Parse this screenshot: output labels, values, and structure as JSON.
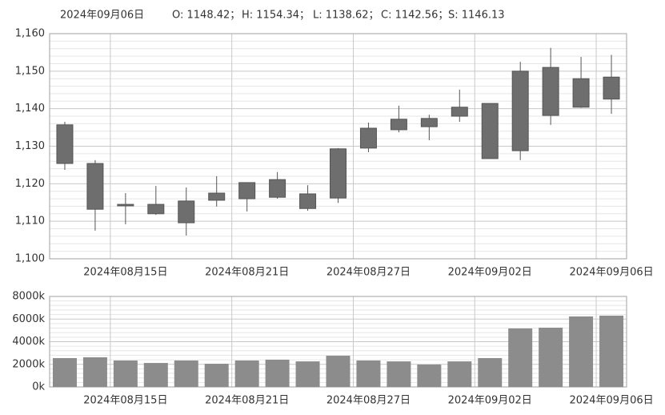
{
  "header": {
    "date": "2024年09月06日",
    "items": [
      "O: 1148.42；",
      "H: 1154.34；",
      "L: 1138.62；",
      "C: 1142.56；",
      "S: 1146.13"
    ]
  },
  "chart_data": [
    {
      "type": "candlestick",
      "categories": [
        null,
        null,
        "2024年08月15日",
        null,
        null,
        null,
        "2024年08月21日",
        null,
        null,
        null,
        "2024年08月27日",
        null,
        null,
        null,
        "2024年09月02日",
        null,
        null,
        null,
        "2024年09月06日"
      ],
      "open": [
        1125.4,
        1125.4,
        1114.1,
        1114.5,
        1115.4,
        1115.6,
        1116.0,
        1116.4,
        1117.3,
        1116.2,
        1129.5,
        1134.4,
        1135.2,
        1138.0,
        1141.4,
        1128.8,
        1138.2,
        1140.4,
        1148.42
      ],
      "high": [
        1136.5,
        1126.3,
        1117.5,
        1119.4,
        1119.0,
        1122.0,
        1120.3,
        1123.1,
        1119.6,
        1129.5,
        1136.3,
        1140.8,
        1138.4,
        1145.1,
        1141.4,
        1152.5,
        1156.2,
        1153.8,
        1154.34
      ],
      "low": [
        1123.7,
        1107.5,
        1109.2,
        1111.7,
        1106.2,
        1113.9,
        1112.6,
        1116.0,
        1112.8,
        1114.9,
        1128.4,
        1133.7,
        1131.6,
        1136.5,
        1126.7,
        1126.3,
        1135.7,
        1140.2,
        1138.62
      ],
      "close": [
        1135.7,
        1113.2,
        1114.5,
        1112.0,
        1109.6,
        1117.5,
        1120.3,
        1121.1,
        1113.4,
        1129.3,
        1134.8,
        1137.2,
        1137.4,
        1140.4,
        1126.7,
        1150.0,
        1151.0,
        1148.0,
        1142.56
      ],
      "color": "#6e6e6e",
      "ylim": [
        1100,
        1160
      ],
      "yticks": [
        {
          "value": 1100,
          "label": "1,100"
        },
        {
          "value": 1110,
          "label": "1,110"
        },
        {
          "value": 1120,
          "label": "1,120"
        },
        {
          "value": 1130,
          "label": "1,130"
        },
        {
          "value": 1140,
          "label": "1,140"
        },
        {
          "value": 1150,
          "label": "1,150"
        },
        {
          "value": 1160,
          "label": "1,160"
        }
      ],
      "grid": true
    },
    {
      "type": "bar",
      "categories": [
        null,
        null,
        "2024年08月15日",
        null,
        null,
        null,
        "2024年08月21日",
        null,
        null,
        null,
        "2024年08月27日",
        null,
        null,
        null,
        "2024年09月02日",
        null,
        null,
        null,
        "2024年09月06日"
      ],
      "values": [
        2550,
        2620,
        2340,
        2120,
        2340,
        2050,
        2340,
        2410,
        2260,
        2760,
        2340,
        2260,
        1980,
        2260,
        2550,
        5170,
        5240,
        6230,
        6300
      ],
      "color": "#8c8c8c",
      "ylim": [
        0,
        8000
      ],
      "yticks": [
        {
          "value": 0,
          "label": "0k"
        },
        {
          "value": 2000,
          "label": "2000k"
        },
        {
          "value": 4000,
          "label": "4000k"
        },
        {
          "value": 6000,
          "label": "6000k"
        },
        {
          "value": 8000,
          "label": "8000k"
        }
      ],
      "grid": true
    }
  ]
}
